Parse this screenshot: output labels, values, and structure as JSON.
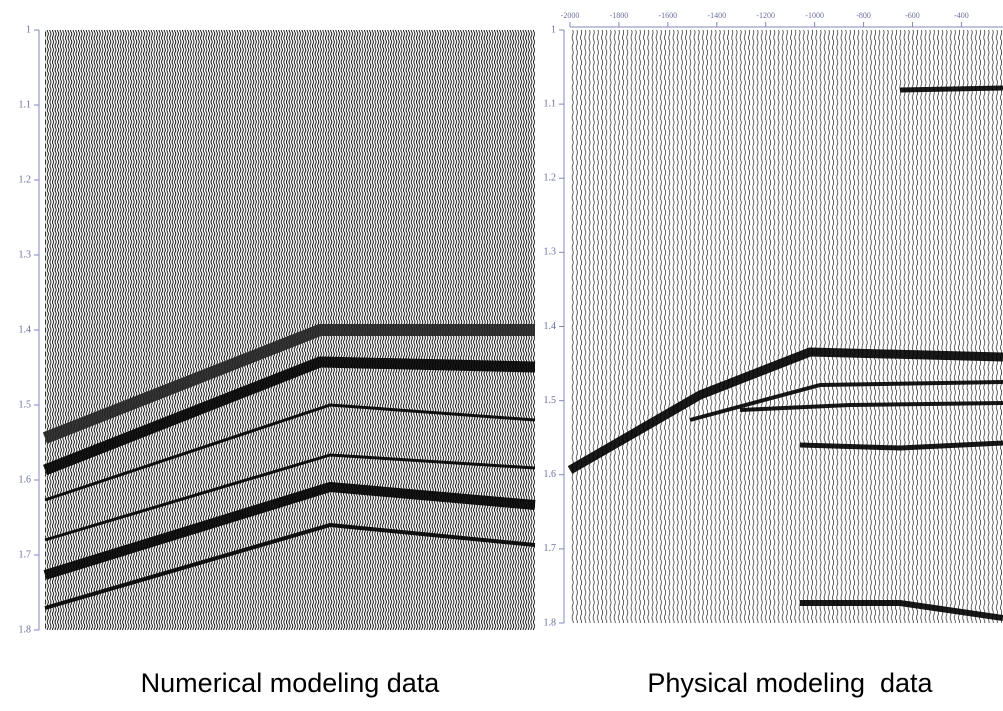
{
  "chart_data": [
    {
      "type": "wiggle",
      "title": "Numerical modeling data",
      "ylim": [
        1,
        1.8
      ],
      "yticks": [
        1,
        1.1,
        1.2,
        1.3,
        1.4,
        1.5,
        1.6,
        1.7,
        1.8
      ]
    },
    {
      "type": "wiggle",
      "title": "Physical modeling  data",
      "ylim": [
        1,
        1.8
      ],
      "yticks": [
        1,
        1.1,
        1.2,
        1.3,
        1.4,
        1.5,
        1.6,
        1.7,
        1.8
      ],
      "xlim": [
        -2000,
        -230
      ],
      "xticks": [
        -2000,
        -1800,
        -1600,
        -1400,
        -1200,
        -1000,
        -800,
        -600,
        -400
      ]
    }
  ]
}
